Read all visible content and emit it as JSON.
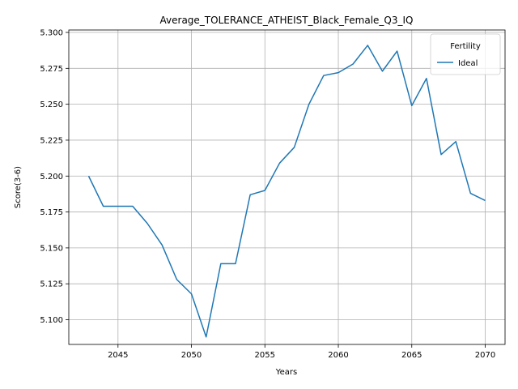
{
  "chart_data": {
    "type": "line",
    "title": "Average_TOLERANCE_ATHEIST_Black_Female_Q3_IQ",
    "xlabel": "Years",
    "ylabel": "Score(3-6)",
    "xlim": [
      2041.65,
      2071.35
    ],
    "ylim": [
      5.0828,
      5.3017
    ],
    "xticks": [
      2045,
      2050,
      2055,
      2060,
      2065,
      2070
    ],
    "yticks": [
      5.1,
      5.125,
      5.15,
      5.175,
      5.2,
      5.225,
      5.25,
      5.275,
      5.3
    ],
    "grid": true,
    "legend": {
      "title": "Fertility",
      "placement": "top-right"
    },
    "series": [
      {
        "name": "Ideal",
        "color": "#1f77b4",
        "x": [
          2043,
          2044,
          2045,
          2046,
          2047,
          2048,
          2049,
          2050,
          2051,
          2052,
          2053,
          2054,
          2055,
          2056,
          2057,
          2058,
          2059,
          2060,
          2061,
          2062,
          2063,
          2064,
          2065,
          2066,
          2067,
          2068,
          2069,
          2070
        ],
        "y": [
          5.2,
          5.179,
          5.179,
          5.179,
          5.167,
          5.152,
          5.128,
          5.118,
          5.088,
          5.139,
          5.139,
          5.187,
          5.19,
          5.209,
          5.22,
          5.25,
          5.27,
          5.272,
          5.278,
          5.291,
          5.273,
          5.287,
          5.249,
          5.268,
          5.215,
          5.224,
          5.188,
          5.183
        ]
      }
    ]
  }
}
